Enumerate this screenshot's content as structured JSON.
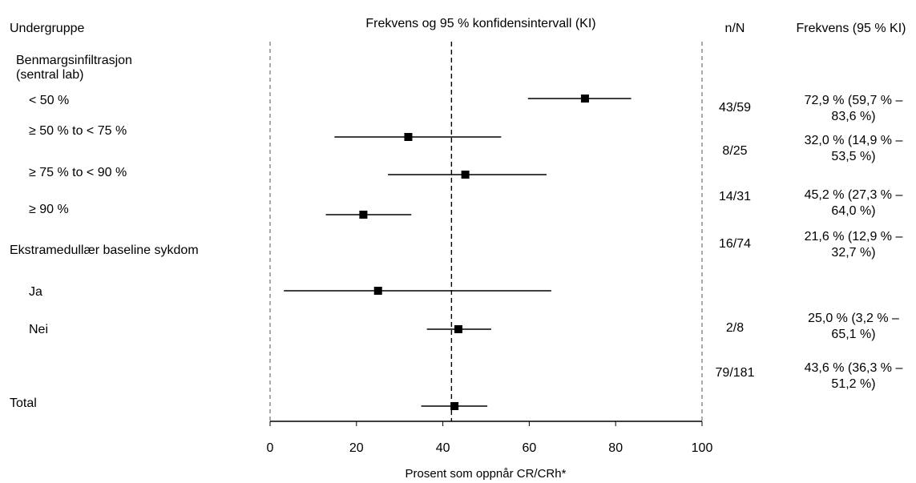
{
  "chart_data": {
    "type": "forest",
    "headers": {
      "subgroup": "Undergruppe",
      "plot": "Frekvens og 95 % konfidensintervall (KI)",
      "nN": "n/N",
      "freq": "Frekvens (95 % KI)"
    },
    "xlabel": "Prosent som oppnår CR/CRh*",
    "xlim": [
      0,
      100
    ],
    "xticks": [
      0,
      20,
      40,
      60,
      80,
      100
    ],
    "reference_line": 42,
    "groups": [
      {
        "id": "g1",
        "line1": "Benmargsinfiltrasjon",
        "line2": "(sentral lab)"
      },
      {
        "id": "g2",
        "line1": "Ekstramedullær baseline sykdom",
        "line2": ""
      }
    ],
    "rows": [
      {
        "label": "< 50 %",
        "estimate": 72.9,
        "low": 59.7,
        "high": 83.6,
        "nN": "43/59",
        "freq1": "72,9 % (59,7 % –",
        "freq2": "83,6 %)"
      },
      {
        "label": "≥ 50 % to < 75 %",
        "estimate": 32.0,
        "low": 14.9,
        "high": 53.5,
        "nN": "8/25",
        "freq1": "32,0 % (14,9 % –",
        "freq2": "53,5 %)"
      },
      {
        "label": "≥ 75 % to < 90 %",
        "estimate": 45.2,
        "low": 27.3,
        "high": 64.0,
        "nN": "14/31",
        "freq1": "45,2 % (27,3 % –",
        "freq2": "64,0 %)"
      },
      {
        "label": "≥ 90 %",
        "estimate": 21.6,
        "low": 12.9,
        "high": 32.7,
        "nN": "16/74",
        "freq1": "21,6 % (12,9 % –",
        "freq2": "32,7 %)"
      },
      {
        "label": "Ja",
        "estimate": 25.0,
        "low": 3.2,
        "high": 65.1,
        "nN": "2/8",
        "freq1": "25,0 % (3,2 % –",
        "freq2": "65,1 %)"
      },
      {
        "label": "Nei",
        "estimate": 43.6,
        "low": 36.3,
        "high": 51.2,
        "nN": "79/181",
        "freq1": "43,6 % (36,3 % –",
        "freq2": "51,2 %)"
      },
      {
        "label": "Total",
        "estimate": 42.7,
        "low": 35.0,
        "high": 50.3,
        "nN": "",
        "freq1": "",
        "freq2": ""
      }
    ]
  }
}
